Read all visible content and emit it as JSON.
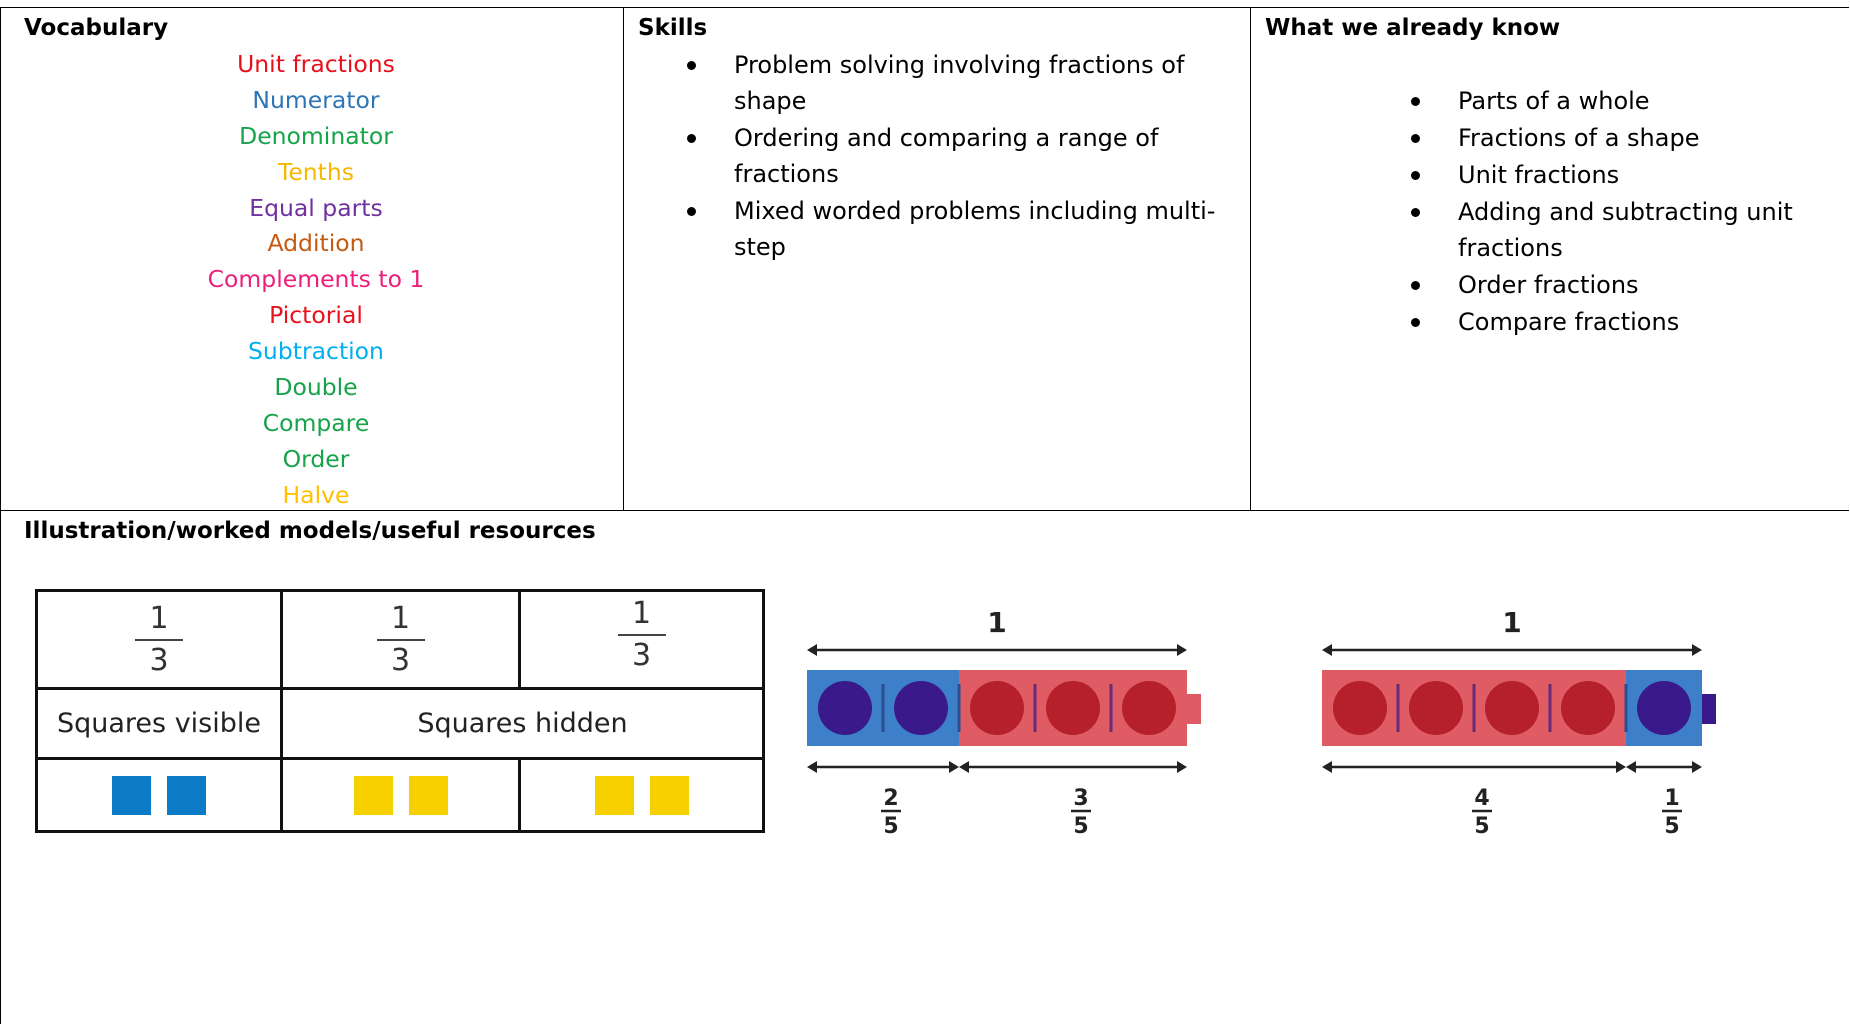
{
  "vocabulary": {
    "heading": "Vocabulary",
    "words": [
      {
        "text": "Unit fractions",
        "color": "#e8101a"
      },
      {
        "text": "Numerator",
        "color": "#2e75b6"
      },
      {
        "text": "Denominator",
        "color": "#16a34a"
      },
      {
        "text": "Tenths",
        "color": "#f5b800"
      },
      {
        "text": "Equal parts",
        "color": "#7030a0"
      },
      {
        "text": "Addition",
        "color": "#c55a11"
      },
      {
        "text": "Complements to 1",
        "color": "#ec1f7a"
      },
      {
        "text": "Pictorial",
        "color": "#e8101a"
      },
      {
        "text": "Subtraction",
        "color": "#00b0f0"
      },
      {
        "text": "Double",
        "color": "#16a34a"
      },
      {
        "text": "Compare",
        "color": "#16a34a"
      },
      {
        "text": "Order",
        "color": "#16a34a"
      },
      {
        "text": "Halve",
        "color": "#ffc000"
      }
    ]
  },
  "skills": {
    "heading": "Skills",
    "items": [
      "Problem solving involving fractions of shape",
      "Ordering and comparing a range of fractions",
      "Mixed worded problems including multi-step"
    ]
  },
  "known": {
    "heading": "What we already know",
    "items": [
      "Parts of a whole",
      "Fractions of a shape",
      "Unit fractions",
      "Adding and subtracting unit fractions",
      "Order fractions",
      "Compare fractions"
    ]
  },
  "illustration": {
    "heading": "Illustration/worked models/useful resources",
    "fraction_table": {
      "fractions": [
        {
          "numerator": "1",
          "denominator": "3"
        },
        {
          "numerator": "1",
          "denominator": "3"
        },
        {
          "numerator": "1",
          "denominator": "3"
        }
      ],
      "visible_label": "Squares visible",
      "hidden_label": "Squares hidden",
      "visible_color": "#0a7bc4",
      "hidden_color": "#f7d000"
    },
    "diagram_a": {
      "whole_label": "1",
      "cubes": [
        "blue",
        "blue",
        "red",
        "red",
        "red"
      ],
      "left": {
        "numerator": "2",
        "denominator": "5"
      },
      "right": {
        "numerator": "3",
        "denominator": "5"
      }
    },
    "diagram_b": {
      "whole_label": "1",
      "cubes": [
        "red",
        "red",
        "red",
        "red",
        "blue"
      ],
      "left": {
        "numerator": "4",
        "denominator": "5"
      },
      "right": {
        "numerator": "1",
        "denominator": "5"
      }
    },
    "colors": {
      "blue_cube": "#3d7fc9",
      "blue_dot": "#3a1a8a",
      "red_cube": "#e05c64",
      "red_dot": "#b5202a"
    }
  }
}
